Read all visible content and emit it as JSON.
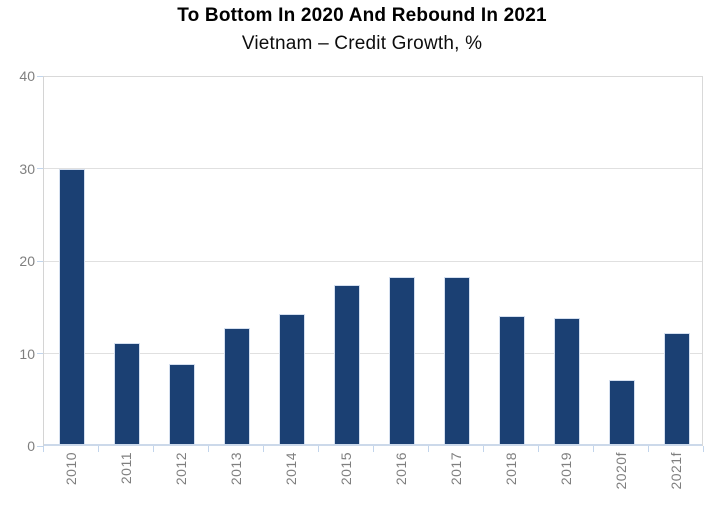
{
  "chart": {
    "title": "To Bottom In 2020 And Rebound In 2021",
    "subtitle": "Vietnam – Credit Growth, %"
  },
  "chart_data": {
    "type": "bar",
    "title": "To Bottom In 2020 And Rebound In 2021",
    "subtitle": "Vietnam – Credit Growth, %",
    "categories": [
      "2010",
      "2011",
      "2012",
      "2013",
      "2014",
      "2015",
      "2016",
      "2017",
      "2018",
      "2019",
      "2020f",
      "2021f"
    ],
    "values": [
      29.7,
      10.9,
      8.7,
      12.5,
      14.1,
      17.2,
      18.1,
      18.1,
      13.8,
      13.6,
      6.9,
      12.0
    ],
    "xlabel": "",
    "ylabel": "",
    "ylim": [
      0,
      40
    ],
    "y_ticks": [
      0,
      10,
      20,
      30,
      40
    ],
    "grid": true,
    "legend": false,
    "colors": {
      "bar": "#1b4073",
      "bar_edge": "#d4dfef",
      "gridline": "#e0e0e0",
      "axis_text": "#7f7f7f",
      "x_axis_line": "#ccd9ea",
      "tick": "#c2d5ec"
    }
  }
}
